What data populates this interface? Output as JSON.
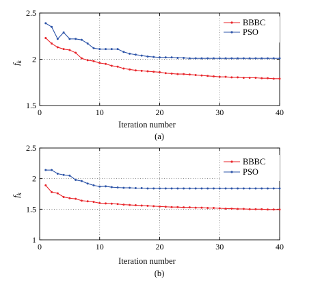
{
  "colors": {
    "bbbc": "#e8262b",
    "pso": "#2e55a8",
    "grid": "#555555",
    "axis": "#000000"
  },
  "chart_data": [
    {
      "type": "line",
      "caption": "(a)",
      "xlabel": "Iteration number",
      "ylabel": "f",
      "ylabel_sub": "k",
      "xlim": [
        0,
        40
      ],
      "ylim": [
        1.5,
        2.5
      ],
      "xticks": [
        0,
        10,
        20,
        30,
        40
      ],
      "yticks": [
        1.5,
        2,
        2.5
      ],
      "ytick_labels": [
        "1.5",
        "2",
        "2.5"
      ],
      "grid": true,
      "legend": "top-right",
      "x": [
        1,
        2,
        3,
        4,
        5,
        6,
        7,
        8,
        9,
        10,
        11,
        12,
        13,
        14,
        15,
        16,
        17,
        18,
        19,
        20,
        21,
        22,
        23,
        24,
        25,
        26,
        27,
        28,
        29,
        30,
        31,
        32,
        33,
        34,
        35,
        36,
        37,
        38,
        39,
        40
      ],
      "series": [
        {
          "name": "BBBC",
          "color": "#e8262b",
          "values": [
            2.23,
            2.17,
            2.13,
            2.11,
            2.1,
            2.07,
            2.01,
            1.99,
            1.98,
            1.96,
            1.95,
            1.93,
            1.92,
            1.9,
            1.89,
            1.88,
            1.875,
            1.87,
            1.865,
            1.86,
            1.85,
            1.845,
            1.84,
            1.84,
            1.835,
            1.83,
            1.825,
            1.82,
            1.815,
            1.81,
            1.81,
            1.805,
            1.805,
            1.8,
            1.8,
            1.8,
            1.795,
            1.795,
            1.79,
            1.79
          ]
        },
        {
          "name": "PSO",
          "color": "#2e55a8",
          "values": [
            2.39,
            2.35,
            2.22,
            2.29,
            2.22,
            2.22,
            2.21,
            2.17,
            2.12,
            2.11,
            2.11,
            2.11,
            2.11,
            2.08,
            2.06,
            2.05,
            2.04,
            2.03,
            2.025,
            2.02,
            2.02,
            2.02,
            2.015,
            2.015,
            2.01,
            2.01,
            2.01,
            2.01,
            2.01,
            2.01,
            2.01,
            2.01,
            2.01,
            2.01,
            2.01,
            2.01,
            2.01,
            2.01,
            2.01,
            2.01
          ]
        }
      ]
    },
    {
      "type": "line",
      "caption": "(b)",
      "xlabel": "Iteration number",
      "ylabel": "f",
      "ylabel_sub": "k",
      "xlim": [
        0,
        40
      ],
      "ylim": [
        1,
        2.5
      ],
      "xticks": [
        0,
        10,
        20,
        30,
        40
      ],
      "yticks": [
        1,
        1.5,
        2,
        2.5
      ],
      "ytick_labels": [
        "1",
        "1.5",
        "2",
        "2.5"
      ],
      "grid": true,
      "legend": "top-right",
      "x": [
        1,
        2,
        3,
        4,
        5,
        6,
        7,
        8,
        9,
        10,
        11,
        12,
        13,
        14,
        15,
        16,
        17,
        18,
        19,
        20,
        21,
        22,
        23,
        24,
        25,
        26,
        27,
        28,
        29,
        30,
        31,
        32,
        33,
        34,
        35,
        36,
        37,
        38,
        39,
        40
      ],
      "series": [
        {
          "name": "BBBC",
          "color": "#e8262b",
          "values": [
            1.89,
            1.78,
            1.76,
            1.7,
            1.68,
            1.67,
            1.64,
            1.63,
            1.62,
            1.6,
            1.595,
            1.59,
            1.585,
            1.575,
            1.57,
            1.565,
            1.56,
            1.555,
            1.55,
            1.545,
            1.54,
            1.535,
            1.535,
            1.53,
            1.53,
            1.525,
            1.525,
            1.52,
            1.52,
            1.515,
            1.51,
            1.51,
            1.505,
            1.505,
            1.5,
            1.5,
            1.5,
            1.495,
            1.495,
            1.495
          ]
        },
        {
          "name": "PSO",
          "color": "#2e55a8",
          "values": [
            2.14,
            2.14,
            2.08,
            2.06,
            2.05,
            1.98,
            1.96,
            1.92,
            1.89,
            1.87,
            1.875,
            1.86,
            1.855,
            1.85,
            1.85,
            1.845,
            1.845,
            1.84,
            1.84,
            1.84,
            1.84,
            1.84,
            1.84,
            1.84,
            1.84,
            1.84,
            1.84,
            1.84,
            1.84,
            1.84,
            1.84,
            1.84,
            1.84,
            1.84,
            1.84,
            1.84,
            1.84,
            1.84,
            1.84,
            1.84
          ]
        }
      ]
    }
  ]
}
